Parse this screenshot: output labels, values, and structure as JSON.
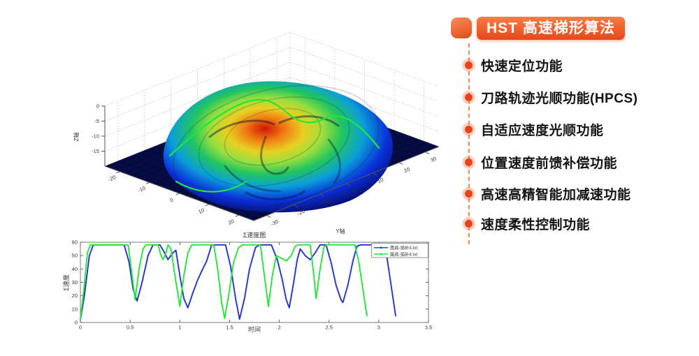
{
  "panel": {
    "accent": "#e8481c",
    "header": {
      "label": "HST 高速梯形算法"
    },
    "items": [
      {
        "label": "快速定位功能"
      },
      {
        "label": "刀路轨迹光顺功能(HPCS)"
      },
      {
        "label": "自适应速度光顺功能"
      },
      {
        "label": "位置速度前馈补偿功能"
      },
      {
        "label": "高速高精智能加减速功能"
      },
      {
        "label": "速度柔性控制功能"
      }
    ]
  },
  "chart_data": [
    {
      "type": "surface",
      "description": "3D machined face/mask surface with jet colormap and green toolpath curves over a dark navy floor",
      "xlabel": "",
      "ylabel": "Y轴",
      "zlabel": "Z轴",
      "x_ticks": [
        -20,
        -10,
        0,
        10,
        20
      ],
      "y_ticks": [
        -30,
        -20,
        -10,
        0,
        10,
        20,
        30
      ],
      "z_ticks": [
        0,
        -5,
        -10,
        -15
      ],
      "xlim": [
        -25,
        25
      ],
      "ylim": [
        -35,
        35
      ],
      "zlim": [
        -20,
        0
      ],
      "grid": "dotted",
      "colormap": [
        "#061070",
        "#0a2fd8",
        "#0b9fd8",
        "#22c55e",
        "#9adf3e",
        "#e8d022",
        "#ef7d12",
        "#d11507"
      ],
      "floor_color": "#050a3f",
      "toolpath_color": "#1ee83c"
    },
    {
      "type": "line",
      "title": "Σ速度图",
      "xlabel": "时间",
      "ylabel": "Σ速度",
      "xlim": [
        0,
        3.5
      ],
      "ylim": [
        0,
        60
      ],
      "x_ticks": [
        0,
        0.5,
        1,
        1.5,
        2,
        2.5,
        3,
        3.5
      ],
      "y_ticks": [
        0,
        10,
        20,
        30,
        40,
        50,
        60
      ],
      "grid": "off",
      "legend_position": "top-right",
      "series": [
        {
          "name": "面具-插补3.txt",
          "color": "#2033cc",
          "marker": "dot",
          "points": [
            [
              0,
              2
            ],
            [
              0.04,
              20
            ],
            [
              0.09,
              50
            ],
            [
              0.13,
              58
            ],
            [
              0.44,
              58
            ],
            [
              0.49,
              45
            ],
            [
              0.53,
              25
            ],
            [
              0.57,
              16
            ],
            [
              0.62,
              30
            ],
            [
              0.68,
              50
            ],
            [
              0.73,
              58
            ],
            [
              0.8,
              58
            ],
            [
              0.84,
              53
            ],
            [
              0.88,
              47
            ],
            [
              0.93,
              52
            ],
            [
              0.96,
              54
            ],
            [
              1,
              35
            ],
            [
              1.04,
              18
            ],
            [
              1.08,
              11
            ],
            [
              1.13,
              22
            ],
            [
              1.18,
              32
            ],
            [
              1.23,
              40
            ],
            [
              1.27,
              46
            ],
            [
              1.32,
              58
            ],
            [
              1.46,
              58
            ],
            [
              1.51,
              42
            ],
            [
              1.56,
              18
            ],
            [
              1.6,
              2.5
            ],
            [
              1.65,
              18
            ],
            [
              1.7,
              40
            ],
            [
              1.76,
              56
            ],
            [
              1.8,
              58
            ],
            [
              1.92,
              58
            ],
            [
              1.98,
              47
            ],
            [
              2.03,
              32
            ],
            [
              2.07,
              17
            ],
            [
              2.1,
              11
            ],
            [
              2.14,
              28
            ],
            [
              2.18,
              47
            ],
            [
              2.21,
              55
            ],
            [
              2.26,
              50
            ],
            [
              2.31,
              47
            ],
            [
              2.36,
              52
            ],
            [
              2.41,
              58
            ],
            [
              2.47,
              58
            ],
            [
              2.52,
              45
            ],
            [
              2.57,
              28
            ],
            [
              2.62,
              17
            ],
            [
              2.64,
              15
            ],
            [
              2.69,
              28
            ],
            [
              2.74,
              46
            ],
            [
              2.78,
              57
            ],
            [
              2.82,
              58
            ],
            [
              3.04,
              58
            ],
            [
              3.08,
              50
            ],
            [
              3.12,
              30
            ],
            [
              3.17,
              5
            ]
          ]
        },
        {
          "name": "面具-插补4.txt",
          "color": "#27e53c",
          "marker": "dot",
          "points": [
            [
              0,
              2
            ],
            [
              0.035,
              25
            ],
            [
              0.07,
              52
            ],
            [
              0.1,
              58
            ],
            [
              0.48,
              58
            ],
            [
              0.52,
              35
            ],
            [
              0.55,
              17
            ],
            [
              0.59,
              40
            ],
            [
              0.63,
              55
            ],
            [
              0.66,
              58
            ],
            [
              0.78,
              58
            ],
            [
              0.81,
              50
            ],
            [
              0.83,
              47
            ],
            [
              0.86,
              52
            ],
            [
              0.88,
              58
            ],
            [
              0.91,
              55
            ],
            [
              0.95,
              35
            ],
            [
              1,
              12
            ],
            [
              1.04,
              35
            ],
            [
              1.08,
              52
            ],
            [
              1.12,
              58
            ],
            [
              1.34,
              58
            ],
            [
              1.38,
              40
            ],
            [
              1.42,
              15
            ],
            [
              1.45,
              3
            ],
            [
              1.49,
              20
            ],
            [
              1.54,
              45
            ],
            [
              1.59,
              56
            ],
            [
              1.63,
              58
            ],
            [
              1.81,
              58
            ],
            [
              1.85,
              35
            ],
            [
              1.89,
              12
            ],
            [
              1.93,
              35
            ],
            [
              1.97,
              50
            ],
            [
              2.02,
              48
            ],
            [
              2.07,
              46
            ],
            [
              2.12,
              50
            ],
            [
              2.16,
              57
            ],
            [
              2.19,
              58
            ],
            [
              2.31,
              58
            ],
            [
              2.34,
              40
            ],
            [
              2.37,
              18
            ],
            [
              2.41,
              40
            ],
            [
              2.45,
              57
            ],
            [
              2.48,
              58
            ],
            [
              2.76,
              58
            ],
            [
              2.8,
              45
            ],
            [
              2.84,
              25
            ],
            [
              2.88,
              5
            ]
          ]
        }
      ]
    }
  ]
}
